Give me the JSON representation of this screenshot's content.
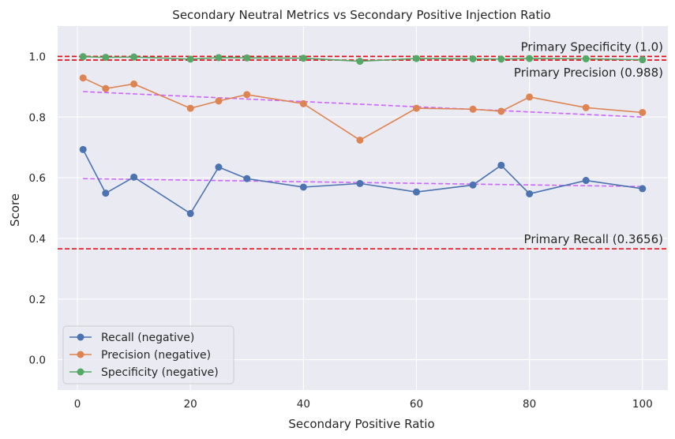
{
  "chart_data": {
    "type": "line",
    "title": "Secondary Neutral Metrics vs Secondary Positive Injection Ratio",
    "xlabel": "Secondary Positive Ratio",
    "ylabel": "Score",
    "xlim": [
      -3.5,
      104.5
    ],
    "ylim": [
      -0.1,
      1.1
    ],
    "xticks": [
      0,
      20,
      40,
      60,
      80,
      100
    ],
    "yticks": [
      0.0,
      0.2,
      0.4,
      0.6,
      0.8,
      1.0
    ],
    "xtick_labels": [
      "0",
      "20",
      "40",
      "60",
      "80",
      "100"
    ],
    "ytick_labels": [
      "0.0",
      "0.2",
      "0.4",
      "0.6",
      "0.8",
      "1.0"
    ],
    "grid": true,
    "legend_position": "lower-left",
    "x": [
      1,
      5,
      10,
      20,
      25,
      30,
      40,
      50,
      60,
      70,
      75,
      80,
      90,
      100
    ],
    "series": [
      {
        "name": "Recall (negative)",
        "color": "#4c72b0",
        "values": [
          0.693,
          0.549,
          0.602,
          0.482,
          0.635,
          0.597,
          0.569,
          0.581,
          0.553,
          0.576,
          0.641,
          0.547,
          0.591,
          0.564
        ]
      },
      {
        "name": "Precision (negative)",
        "color": "#dd8452",
        "values": [
          0.929,
          0.894,
          0.909,
          0.829,
          0.853,
          0.874,
          0.844,
          0.724,
          0.829,
          0.826,
          0.819,
          0.866,
          0.831,
          0.815
        ]
      },
      {
        "name": "Specificity (negative)",
        "color": "#55a868",
        "values": [
          0.999,
          0.997,
          0.998,
          0.991,
          0.996,
          0.995,
          0.994,
          0.984,
          0.993,
          0.992,
          0.991,
          0.993,
          0.992,
          0.989
        ]
      }
    ],
    "trend_lines": [
      {
        "color": "#cc66ff",
        "x": [
          1,
          100
        ],
        "y": [
          0.597,
          0.571
        ]
      },
      {
        "color": "#cc66ff",
        "x": [
          1,
          100
        ],
        "y": [
          0.884,
          0.8
        ]
      }
    ],
    "reference_lines": [
      {
        "label": "Primary Specificity (1.0)",
        "value": 1.0,
        "color": "#e8000b"
      },
      {
        "label": "Primary Precision (0.988)",
        "value": 0.988,
        "color": "#e8000b"
      },
      {
        "label": "Primary Recall (0.3656)",
        "value": 0.3656,
        "color": "#e8000b"
      }
    ]
  }
}
